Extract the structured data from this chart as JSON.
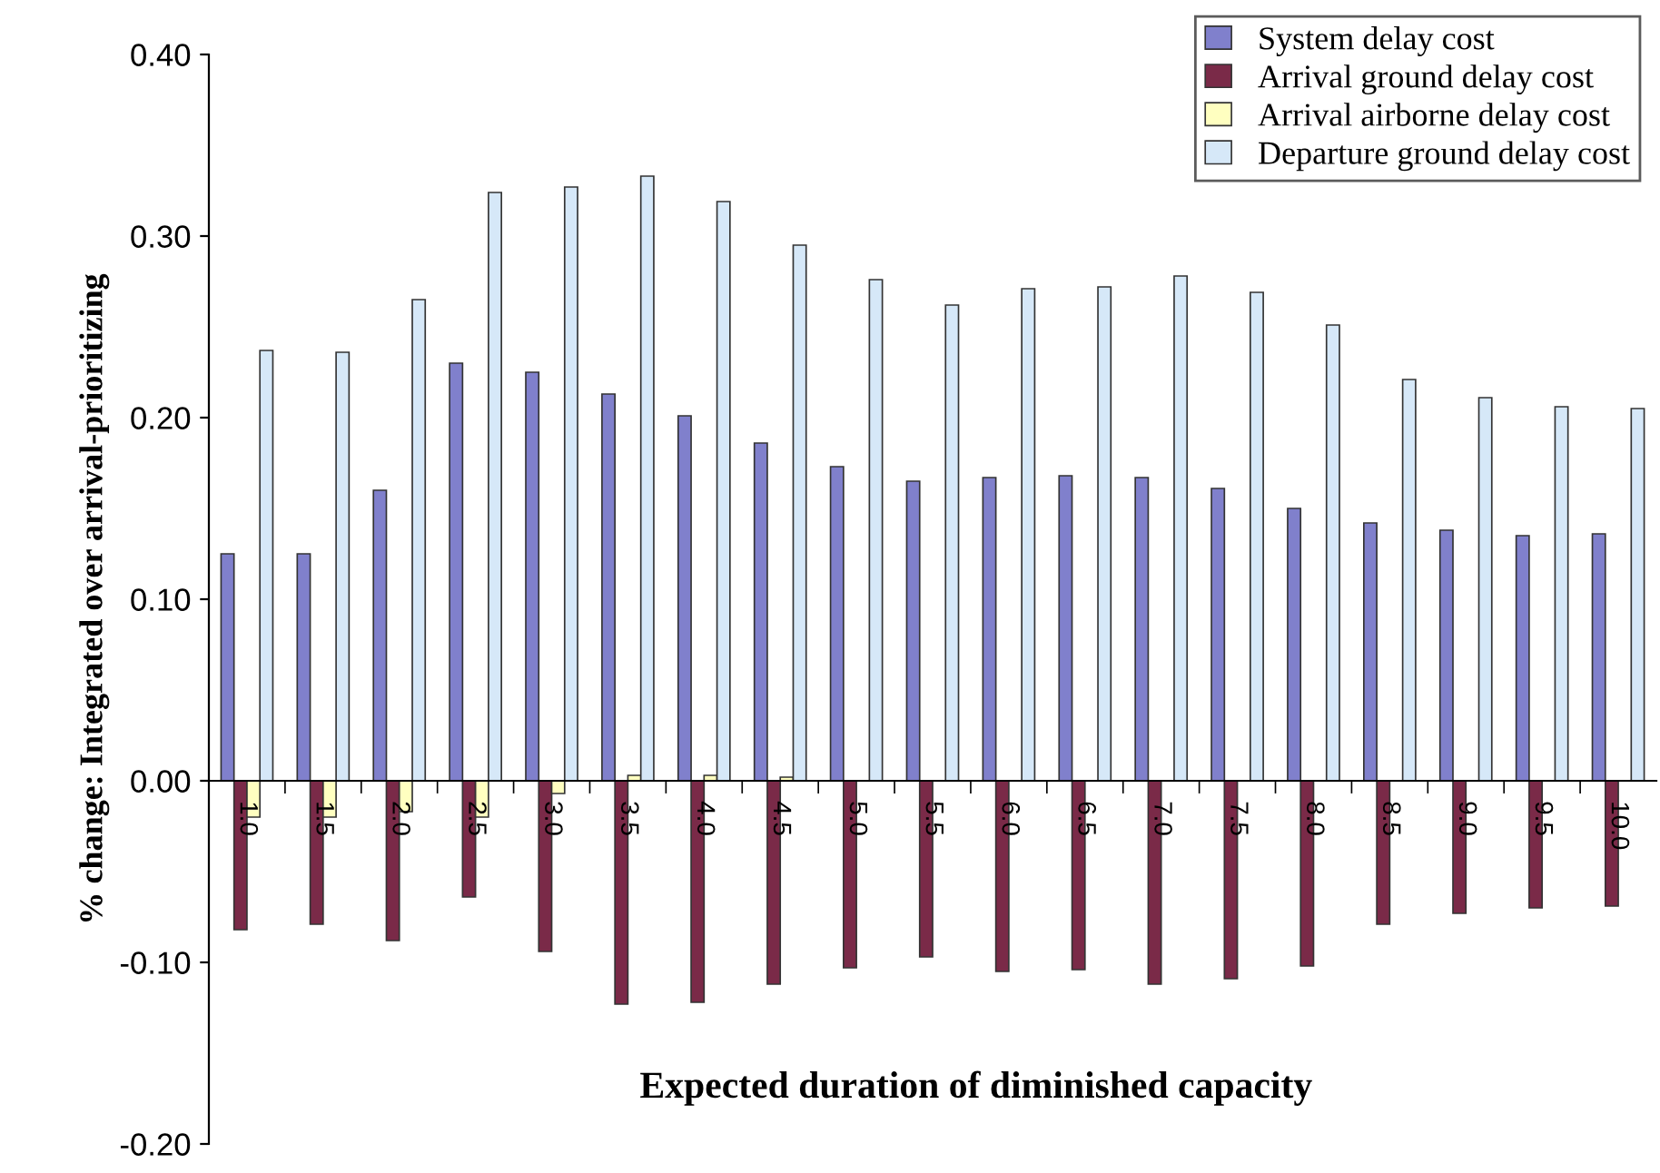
{
  "chart_data": {
    "type": "bar",
    "xlabel": "Expected duration of diminished capacity",
    "ylabel": "% change: Integrated over arrival-prioritizing",
    "categories": [
      "1.0",
      "1.5",
      "2.0",
      "2.5",
      "3.0",
      "3.5",
      "4.0",
      "4.5",
      "5.0",
      "5.5",
      "6.0",
      "6.5",
      "7.0",
      "7.5",
      "8.0",
      "8.5",
      "9.0",
      "9.5",
      "10.0"
    ],
    "series": [
      {
        "name": "System delay cost",
        "color": "#8080cc",
        "values": [
          0.125,
          0.125,
          0.16,
          0.23,
          0.225,
          0.213,
          0.201,
          0.186,
          0.173,
          0.165,
          0.167,
          0.168,
          0.167,
          0.161,
          0.15,
          0.142,
          0.138,
          0.135,
          0.136
        ]
      },
      {
        "name": "Arrival ground delay cost",
        "color": "#7a2a48",
        "values": [
          -0.082,
          -0.079,
          -0.088,
          -0.064,
          -0.094,
          -0.123,
          -0.122,
          -0.112,
          -0.103,
          -0.097,
          -0.105,
          -0.104,
          -0.112,
          -0.109,
          -0.102,
          -0.079,
          -0.073,
          -0.07,
          -0.069
        ]
      },
      {
        "name": "Arrival airborne delay cost",
        "color": "#ffffc0",
        "values": [
          -0.02,
          -0.02,
          -0.017,
          -0.02,
          -0.007,
          0.003,
          0.003,
          0.002,
          null,
          null,
          null,
          null,
          null,
          null,
          null,
          null,
          null,
          null,
          null
        ]
      },
      {
        "name": "Departure ground delay cost",
        "color": "#d6e8f8",
        "values": [
          0.237,
          0.236,
          0.265,
          0.324,
          0.327,
          0.333,
          0.319,
          0.295,
          0.276,
          0.262,
          0.271,
          0.272,
          0.278,
          0.269,
          0.251,
          0.221,
          0.211,
          0.206,
          0.205
        ]
      }
    ],
    "ylim": [
      -0.2,
      0.4
    ],
    "yticks": [
      {
        "value": -0.2,
        "label": "-0.20"
      },
      {
        "value": -0.1,
        "label": "-0.10"
      },
      {
        "value": 0,
        "label": "0.00"
      },
      {
        "value": 0.1,
        "label": "0.10"
      },
      {
        "value": 0.2,
        "label": "0.20"
      },
      {
        "value": 0.3,
        "label": "0.30"
      },
      {
        "value": 0.4,
        "label": "0.40"
      }
    ],
    "grid": false,
    "legend": "top right"
  }
}
